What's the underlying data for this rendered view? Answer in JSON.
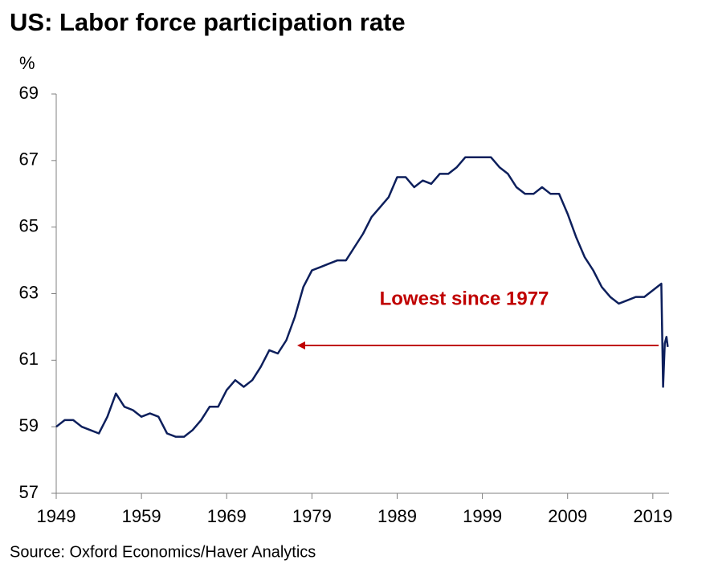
{
  "chart_data": {
    "type": "line",
    "title": "US: Labor force participation rate",
    "y_label": "%",
    "source": "Source: Oxford Economics/Haver Analytics",
    "annotation": "Lowest since 1977",
    "x": [
      1949,
      1950,
      1951,
      1952,
      1953,
      1954,
      1955,
      1956,
      1957,
      1958,
      1959,
      1960,
      1961,
      1962,
      1963,
      1964,
      1965,
      1966,
      1967,
      1968,
      1969,
      1970,
      1971,
      1972,
      1973,
      1974,
      1975,
      1976,
      1977,
      1978,
      1979,
      1980,
      1981,
      1982,
      1983,
      1984,
      1985,
      1986,
      1987,
      1988,
      1989,
      1990,
      1991,
      1992,
      1993,
      1994,
      1995,
      1996,
      1997,
      1998,
      1999,
      2000,
      2001,
      2002,
      2003,
      2004,
      2005,
      2006,
      2007,
      2008,
      2009,
      2010,
      2011,
      2012,
      2013,
      2014,
      2015,
      2016,
      2017,
      2018,
      2019,
      2020.0,
      2020.2,
      2020.4,
      2020.6,
      2020.75
    ],
    "series": [
      {
        "name": "Labor force participation rate",
        "color": "#0d1f5c",
        "values": [
          59.0,
          59.2,
          59.2,
          59.0,
          58.9,
          58.8,
          59.3,
          60.0,
          59.6,
          59.5,
          59.3,
          59.4,
          59.3,
          58.8,
          58.7,
          58.7,
          58.9,
          59.2,
          59.6,
          59.6,
          60.1,
          60.4,
          60.2,
          60.4,
          60.8,
          61.3,
          61.2,
          61.6,
          62.3,
          63.2,
          63.7,
          63.8,
          63.9,
          64.0,
          64.0,
          64.4,
          64.8,
          65.3,
          65.6,
          65.9,
          66.5,
          66.5,
          66.2,
          66.4,
          66.3,
          66.6,
          66.6,
          66.8,
          67.1,
          67.1,
          67.1,
          67.1,
          66.8,
          66.6,
          66.2,
          66.0,
          66.0,
          66.2,
          66.0,
          66.0,
          65.4,
          64.7,
          64.1,
          63.7,
          63.2,
          62.9,
          62.7,
          62.8,
          62.9,
          62.9,
          63.1,
          63.3,
          60.2,
          61.5,
          61.7,
          61.4
        ]
      }
    ],
    "xlim": [
      1949,
      2020.9
    ],
    "xticks": [
      1949,
      1959,
      1969,
      1979,
      1989,
      1999,
      2009,
      2019
    ],
    "ylim": [
      57,
      69
    ],
    "yticks": [
      57,
      59,
      61,
      63,
      65,
      67,
      69
    ],
    "annotation_color": "#c00000"
  }
}
